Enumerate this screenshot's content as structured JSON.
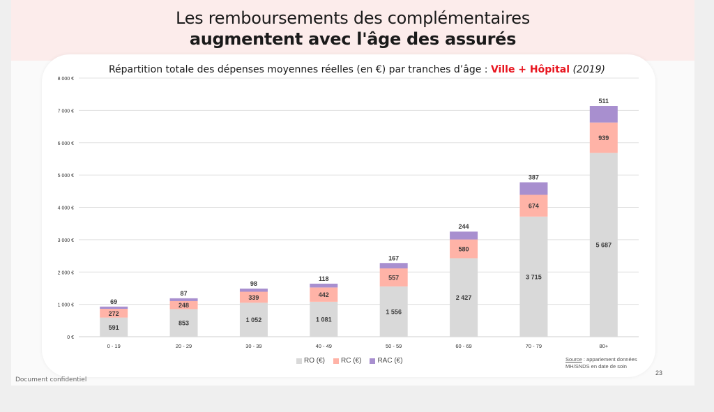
{
  "slide": {
    "title_line1": "Les remboursements des complémentaires",
    "title_line2": "augmentent avec l'âge des assurés",
    "page_number": "23",
    "footer_note": "Document confidentiel"
  },
  "chart_title": {
    "main": "Répartition totale des dépenses moyennes réelles (en €) par tranches d’âge : ",
    "highlight": "Ville + Hôpital",
    "year": "(2019)"
  },
  "source": {
    "label": "Source",
    "line1_rest": " : appariement données",
    "line2": "MH/SNDS en date de soin"
  },
  "colors": {
    "RO": "#d9d9d9",
    "RC": "#ffb3a7",
    "RAC": "#a88fcf",
    "highlight": "#e8141e",
    "header_band": "#fceceb"
  },
  "chart_data": {
    "type": "bar",
    "stacked": true,
    "title": "Répartition totale des dépenses moyennes réelles (en €) par tranches d’âge : Ville + Hôpital (2019)",
    "xlabel": "",
    "ylabel": "",
    "categories": [
      "0 - 19",
      "20 - 29",
      "30 - 39",
      "40 - 49",
      "50 - 59",
      "60 - 69",
      "70 - 79",
      "80+"
    ],
    "series": [
      {
        "name": "RO (€)",
        "key": "RO",
        "values": [
          591,
          853,
          1052,
          1081,
          1556,
          2427,
          3715,
          5687
        ],
        "labels": [
          "591",
          "853",
          "1 052",
          "1 081",
          "1 556",
          "2 427",
          "3 715",
          "5 687"
        ]
      },
      {
        "name": "RC (€)",
        "key": "RC",
        "values": [
          272,
          248,
          339,
          442,
          557,
          580,
          674,
          939
        ],
        "labels": [
          "272",
          "248",
          "339",
          "442",
          "557",
          "580",
          "674",
          "939"
        ]
      },
      {
        "name": "RAC (€)",
        "key": "RAC",
        "values": [
          69,
          87,
          98,
          118,
          167,
          244,
          387,
          511
        ],
        "labels": [
          "69",
          "87",
          "98",
          "118",
          "167",
          "244",
          "387",
          "511"
        ]
      }
    ],
    "ylim": [
      0,
      8000
    ],
    "yticks": [
      0,
      1000,
      2000,
      3000,
      4000,
      5000,
      6000,
      7000,
      8000
    ],
    "ytick_labels": [
      "0 €",
      "1 000 €",
      "2 000 €",
      "3 000 €",
      "4 000 €",
      "5 000 €",
      "6 000 €",
      "7 000 €",
      "8 000 €"
    ],
    "grid": true,
    "legend_position": "bottom-center"
  }
}
